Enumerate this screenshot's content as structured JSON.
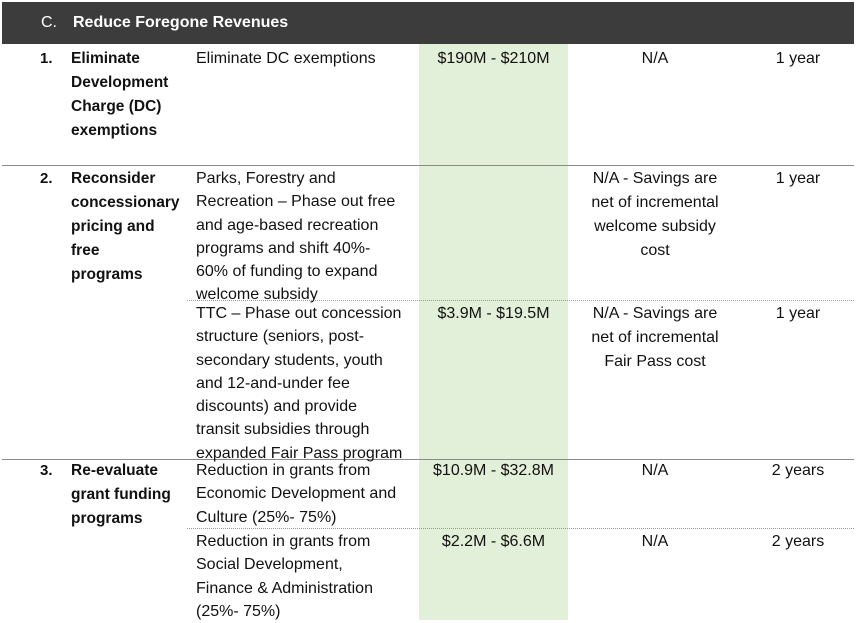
{
  "header": {
    "letter": "C.",
    "title": "Reduce Foregone Revenues"
  },
  "rows": [
    {
      "number": "1.",
      "name": [
        "Eliminate",
        "Development",
        "Charge (DC)",
        "exemptions"
      ],
      "items": [
        {
          "description": [
            "Eliminate DC exemptions"
          ],
          "cost": "$190M - $210M",
          "note": [
            "N/A"
          ],
          "timeline": "1 year"
        }
      ]
    },
    {
      "number": "2.",
      "name": [
        "Reconsider",
        "concessionary",
        "pricing and",
        "free",
        "programs"
      ],
      "items": [
        {
          "description": [
            "Parks, Forestry and",
            "Recreation – Phase out free",
            "and age-based recreation",
            "programs and shift 40%-",
            "60% of funding to expand",
            "welcome subsidy"
          ],
          "cost": "",
          "note": [
            "N/A - Savings are",
            "net of incremental",
            "welcome subsidy",
            "cost"
          ],
          "timeline": "1 year"
        },
        {
          "description": [
            "TTC – Phase out concession",
            "structure (seniors, post-",
            "secondary students, youth",
            "and 12-and-under fee",
            "discounts) and provide",
            "transit subsidies through",
            "expanded Fair Pass program"
          ],
          "cost": "$3.9M - $19.5M",
          "note": [
            "N/A - Savings are",
            "net of incremental",
            "Fair Pass cost"
          ],
          "timeline": "1 year"
        }
      ]
    },
    {
      "number": "3.",
      "name": [
        "Re-evaluate",
        "grant funding",
        "programs"
      ],
      "items": [
        {
          "description": [
            "Reduction in grants from",
            "Economic Development and",
            "Culture (25%- 75%)"
          ],
          "cost": "$10.9M - $32.8M",
          "note": [
            "N/A"
          ],
          "timeline": "2 years"
        },
        {
          "description": [
            "Reduction in grants from",
            "Social Development,",
            "Finance & Administration",
            "(25%- 75%)"
          ],
          "cost": "$2.2M - $6.6M",
          "note": [
            "N/A"
          ],
          "timeline": "2 years"
        }
      ]
    }
  ]
}
